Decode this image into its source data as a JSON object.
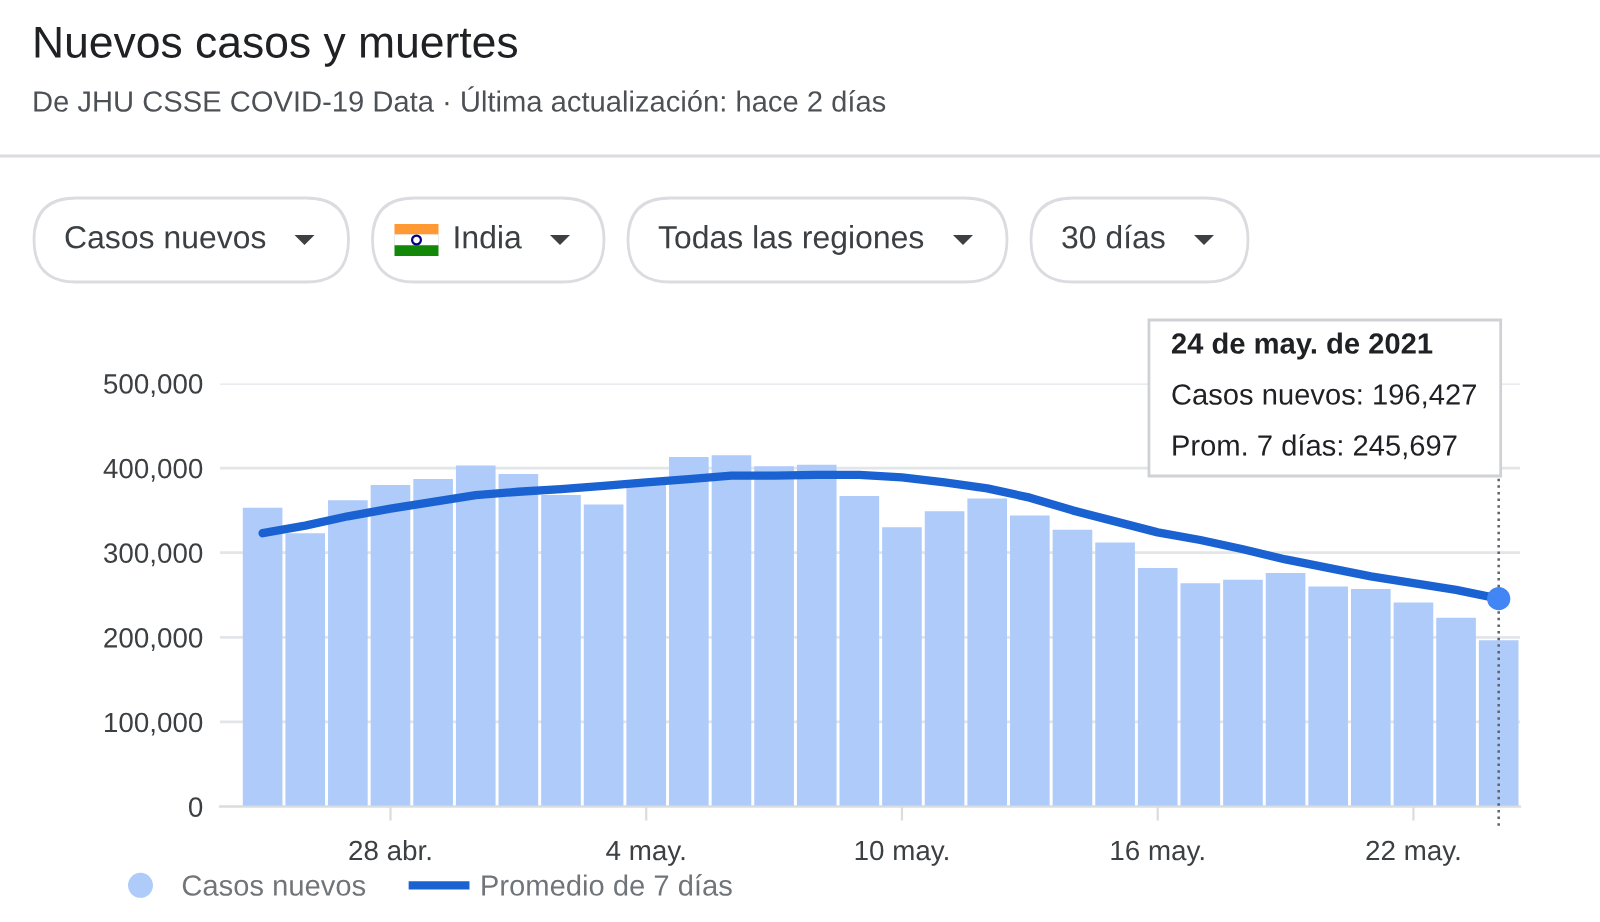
{
  "chart_data": {
    "type": "bar",
    "title": "Nuevos casos y muertes",
    "subtitle": "De JHU CSSE COVID-19 Data · Última actualización: hace 2 días",
    "annotations": [
      "Casos nuevos",
      "India",
      "Todas las regiones",
      "30 días",
      "24 de may. de 2021",
      "Casos nuevos: 196,427",
      "Prom. 7 días: 245,697"
    ],
    "x": [
      "2021-04-25",
      "2021-04-26",
      "2021-04-27",
      "2021-04-28",
      "2021-04-29",
      "2021-04-30",
      "2021-05-01",
      "2021-05-02",
      "2021-05-03",
      "2021-05-04",
      "2021-05-05",
      "2021-05-06",
      "2021-05-07",
      "2021-05-08",
      "2021-05-09",
      "2021-05-10",
      "2021-05-11",
      "2021-05-12",
      "2021-05-13",
      "2021-05-14",
      "2021-05-15",
      "2021-05-16",
      "2021-05-17",
      "2021-05-18",
      "2021-05-19",
      "2021-05-20",
      "2021-05-21",
      "2021-05-22",
      "2021-05-23",
      "2021-05-24"
    ],
    "series": [
      {
        "name": "Casos nuevos",
        "color": "#aecbfa",
        "values": [
          353000,
          323000,
          362000,
          380000,
          387000,
          403000,
          393000,
          368000,
          357000,
          382000,
          413000,
          415000,
          402000,
          404000,
          367000,
          330000,
          349000,
          364000,
          344000,
          327000,
          312000,
          282000,
          264000,
          268000,
          276000,
          260000,
          257000,
          241000,
          223000,
          196427
        ]
      },
      {
        "name": "Promedio de 7 días",
        "type": "line",
        "color": "#1a62d2",
        "values": [
          323000,
          332000,
          343000,
          352000,
          360000,
          368000,
          372000,
          375000,
          379000,
          383000,
          387000,
          391000,
          391000,
          392000,
          392000,
          389000,
          383000,
          376000,
          365000,
          350000,
          337000,
          324000,
          315000,
          304000,
          292000,
          282000,
          272000,
          264000,
          256000,
          245697
        ]
      },
      {
        "type": "scatter",
        "color": "#4285f4",
        "marker": "circle",
        "x": [
          "2021-05-24"
        ],
        "values": [
          245697
        ]
      }
    ],
    "xlim": [
      "2021-04-24",
      "2021-05-24T12:00"
    ],
    "xticks": [
      {
        "value": "2021-04-28",
        "label": "28 abr."
      },
      {
        "value": "2021-05-04",
        "label": "4 may."
      },
      {
        "value": "2021-05-10",
        "label": "10 may."
      },
      {
        "value": "2021-05-16",
        "label": "16 may."
      },
      {
        "value": "2021-05-22",
        "label": "22 may."
      }
    ],
    "ylim": [
      0,
      500000
    ],
    "yticks": [
      0,
      {
        "value": 100000,
        "label": "100,000"
      },
      {
        "value": 200000,
        "label": "200,000"
      },
      {
        "value": 300000,
        "label": "300,000"
      },
      {
        "value": 400000,
        "label": "400,000"
      },
      {
        "value": 500000,
        "label": "500,000"
      }
    ],
    "ref_lines": [
      {
        "axis": "x",
        "value": "2021-05-24",
        "color": "#5f6368",
        "line_style": "dotted"
      }
    ],
    "grid": "y",
    "legend": "bottom"
  }
}
